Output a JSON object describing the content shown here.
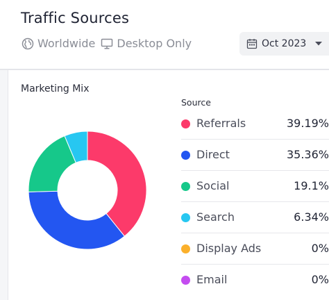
{
  "header": {
    "title": "Traffic Sources",
    "filters": [
      {
        "label": "Worldwide",
        "icon": "globe-icon"
      },
      {
        "label": "Desktop Only",
        "icon": "monitor-icon"
      }
    ],
    "date_picker": {
      "value": "Oct 2023",
      "icon": "calendar-icon"
    }
  },
  "card": {
    "title": "Marketing Mix",
    "legend_header": "Source"
  },
  "chart_data": {
    "type": "pie",
    "categories": [
      "Referrals",
      "Direct",
      "Social",
      "Search",
      "Display Ads",
      "Email"
    ],
    "values": [
      39.19,
      35.36,
      19.1,
      6.34,
      0,
      0
    ],
    "labels": [
      "39.19%",
      "35.36%",
      "19.1%",
      "6.34%",
      "0%",
      "0%"
    ],
    "colors": [
      "#fc3a6a",
      "#2356f1",
      "#16c88a",
      "#27c7f1",
      "#fbb02b",
      "#c44cf0"
    ],
    "donut": true
  }
}
